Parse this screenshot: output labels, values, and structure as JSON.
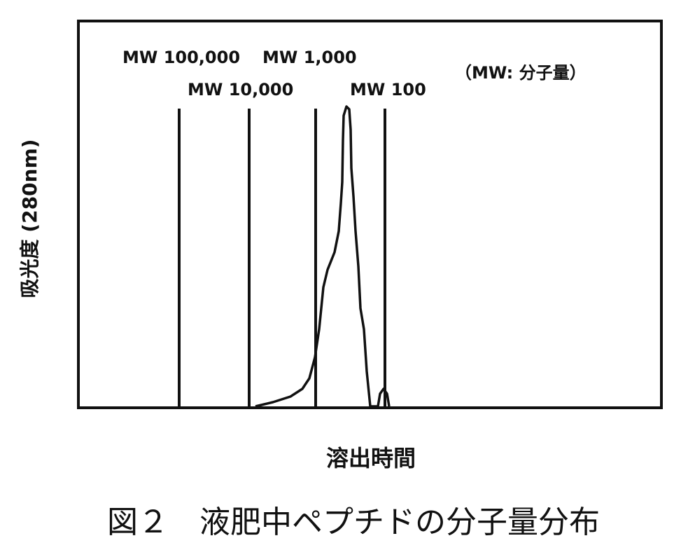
{
  "chart_data": {
    "type": "line",
    "markers": [
      "MW 100,000",
      "MW 10,000",
      "MW 1,000",
      "MW 100"
    ],
    "note": "（MW: 分子量）",
    "y_label": "吸光度 (280nm)",
    "x_label": "溶出時間",
    "caption": "図２　液肥中ペプチドの分子量分布"
  }
}
